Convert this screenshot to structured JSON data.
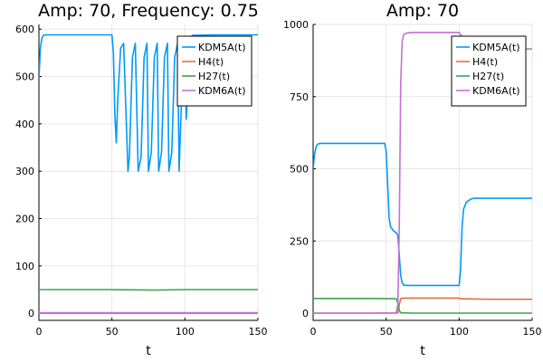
{
  "chart_data": [
    {
      "type": "line",
      "title": "Amp: 70, Frequency: 0.75",
      "xlabel": "t",
      "ylabel": "",
      "xlim": [
        0,
        150
      ],
      "ylim": [
        -15,
        610
      ],
      "xticks": [
        0,
        50,
        100,
        150
      ],
      "yticks": [
        0,
        100,
        200,
        300,
        400,
        500,
        600
      ],
      "legend_position": "top-right",
      "series": [
        {
          "name": "KDM5A(t)",
          "color": "#009af9",
          "x": [
            0,
            1,
            2,
            3,
            5,
            10,
            20,
            30,
            40,
            50,
            51,
            52,
            53,
            54,
            56,
            58,
            61,
            62,
            64,
            66,
            68,
            70,
            72,
            74,
            75,
            77,
            79,
            81,
            82,
            84,
            86,
            88,
            89,
            91,
            93,
            95,
            96,
            98,
            100,
            101,
            103,
            105,
            120,
            135,
            150
          ],
          "y": [
            495,
            560,
            580,
            587,
            588,
            588,
            588,
            588,
            588,
            588,
            550,
            420,
            360,
            450,
            560,
            570,
            300,
            330,
            540,
            570,
            300,
            330,
            540,
            570,
            300,
            340,
            540,
            570,
            300,
            340,
            540,
            570,
            300,
            340,
            540,
            570,
            300,
            480,
            570,
            410,
            560,
            587,
            588,
            588,
            588
          ]
        },
        {
          "name": "H4(t)",
          "color": "#e26f46",
          "x": [
            0,
            50,
            100,
            150
          ],
          "y": [
            0,
            0,
            0,
            0
          ]
        },
        {
          "name": "H27(t)",
          "color": "#3da44d",
          "x": [
            0,
            50,
            80,
            100,
            150
          ],
          "y": [
            50,
            50,
            49,
            50,
            50
          ]
        },
        {
          "name": "KDM6A(t)",
          "color": "#c271d2",
          "x": [
            0,
            50,
            100,
            150
          ],
          "y": [
            1,
            1,
            1,
            1
          ]
        }
      ]
    },
    {
      "type": "line",
      "title": "Amp: 70",
      "xlabel": "t",
      "ylabel": "",
      "xlim": [
        0,
        150
      ],
      "ylim": [
        -25,
        1000
      ],
      "xticks": [
        0,
        50,
        100,
        150
      ],
      "yticks": [
        0,
        250,
        500,
        750,
        1000
      ],
      "legend_position": "top-right",
      "series": [
        {
          "name": "KDM5A(t)",
          "color": "#009af9",
          "x": [
            0,
            1,
            2,
            3,
            5,
            10,
            20,
            30,
            40,
            49,
            50,
            51,
            52,
            53,
            55,
            57,
            58,
            59,
            60,
            61,
            62,
            65,
            70,
            80,
            90,
            100,
            101,
            102,
            103,
            105,
            108,
            110,
            120,
            130,
            150
          ],
          "y": [
            500,
            550,
            575,
            585,
            588,
            588,
            588,
            588,
            588,
            588,
            560,
            450,
            330,
            300,
            285,
            278,
            270,
            200,
            130,
            105,
            97,
            96,
            96,
            96,
            96,
            96,
            150,
            300,
            360,
            385,
            395,
            398,
            398,
            398,
            398
          ]
        },
        {
          "name": "H4(t)",
          "color": "#e26f46",
          "x": [
            0,
            40,
            57,
            58,
            59,
            60,
            61,
            70,
            80,
            100,
            101,
            120,
            150
          ],
          "y": [
            0,
            0,
            0,
            1,
            30,
            50,
            52,
            52,
            52,
            52,
            50,
            48,
            48
          ]
        },
        {
          "name": "H27(t)",
          "color": "#3da44d",
          "x": [
            0,
            40,
            56,
            57,
            58,
            59,
            60,
            70,
            100,
            150
          ],
          "y": [
            51,
            51,
            50,
            49,
            35,
            10,
            1,
            0,
            0,
            0
          ]
        },
        {
          "name": "KDM6A(t)",
          "color": "#c271d2",
          "x": [
            0,
            40,
            56,
            57,
            58,
            59,
            60,
            61,
            62,
            64,
            68,
            75,
            85,
            100,
            101,
            105,
            110,
            130,
            150
          ],
          "y": [
            0,
            0,
            1,
            3,
            30,
            300,
            800,
            940,
            965,
            970,
            972,
            972,
            972,
            972,
            965,
            935,
            920,
            915,
            915
          ]
        }
      ]
    }
  ]
}
